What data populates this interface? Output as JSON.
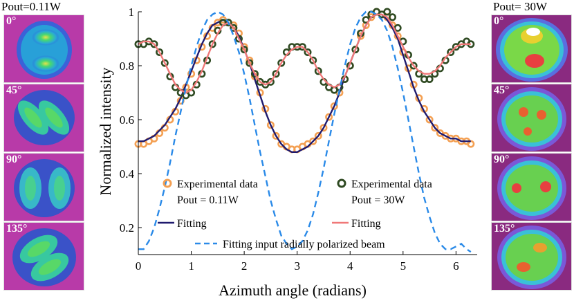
{
  "left_panel": {
    "header": "Pout=0.11W",
    "tiles": [
      {
        "angle": "0°",
        "pattern": "two-lobe-vertical"
      },
      {
        "angle": "45°",
        "pattern": "two-lobe-diagonal"
      },
      {
        "angle": "90°",
        "pattern": "two-lobe-horizontal"
      },
      {
        "angle": "135°",
        "pattern": "two-lobe-antidiagonal"
      }
    ]
  },
  "right_panel": {
    "header": "Pout= 30W",
    "tiles": [
      {
        "angle": "0°"
      },
      {
        "angle": "45°"
      },
      {
        "angle": "90°"
      },
      {
        "angle": "135°"
      }
    ]
  },
  "colors": {
    "exp_low": "#f4a053",
    "fit_low": "#1f1a6e",
    "exp_high": "#2f4a22",
    "fit_high": "#f07878",
    "fit_input": "#2a8ae8"
  },
  "chart_data": {
    "type": "line",
    "xlabel": "Azimuth angle (radians)",
    "ylabel": "Normalized intensity",
    "xlim": [
      0,
      6.4
    ],
    "ylim": [
      0.1,
      1.0
    ],
    "xticks": [
      0,
      1,
      2,
      3,
      4,
      5,
      6
    ],
    "yticks": [
      0.2,
      0.4,
      0.6,
      0.8,
      1
    ],
    "xtick_labels": [
      "0",
      "1",
      "2",
      "3",
      "4",
      "5",
      "6"
    ],
    "ytick_labels": [
      "0.2",
      "0.4",
      "0.6",
      "0.8",
      "1"
    ],
    "legend": [
      {
        "marker": "circle-open-orange",
        "text": [
          "Experimental data",
          "Pout = 0.11W"
        ]
      },
      {
        "marker": "line-navy",
        "text": [
          "Fitting"
        ]
      },
      {
        "marker": "circle-open-darkgreen",
        "text": [
          "Experimental data",
          "Pout = 30W"
        ]
      },
      {
        "marker": "line-salmon",
        "text": [
          "Fitting"
        ]
      },
      {
        "marker": "dashed-blue",
        "text": [
          "Fitting input radially polarized beam"
        ]
      }
    ],
    "series": [
      {
        "style": "scatter",
        "color": "#f4a053",
        "x": [
          0.0,
          0.1,
          0.2,
          0.3,
          0.4,
          0.5,
          0.6,
          0.7,
          0.8,
          0.9,
          1.0,
          1.1,
          1.2,
          1.3,
          1.4,
          1.5,
          1.6,
          1.7,
          1.8,
          1.9,
          2.0,
          2.1,
          2.2,
          2.3,
          2.4,
          2.5,
          2.6,
          2.7,
          2.8,
          2.9,
          3.0,
          3.1,
          3.2,
          3.3,
          3.4,
          3.5,
          3.6,
          3.7,
          3.8,
          3.9,
          4.0,
          4.1,
          4.2,
          4.3,
          4.4,
          4.5,
          4.6,
          4.7,
          4.8,
          4.9,
          5.0,
          5.1,
          5.2,
          5.3,
          5.4,
          5.5,
          5.6,
          5.7,
          5.8,
          5.9,
          6.0,
          6.1,
          6.2,
          6.28
        ],
        "y": [
          0.51,
          0.51,
          0.52,
          0.53,
          0.55,
          0.57,
          0.6,
          0.63,
          0.67,
          0.72,
          0.77,
          0.82,
          0.87,
          0.91,
          0.94,
          0.96,
          0.97,
          0.96,
          0.95,
          0.92,
          0.87,
          0.82,
          0.76,
          0.7,
          0.64,
          0.58,
          0.54,
          0.51,
          0.5,
          0.49,
          0.49,
          0.5,
          0.51,
          0.52,
          0.54,
          0.57,
          0.61,
          0.65,
          0.7,
          0.75,
          0.8,
          0.86,
          0.91,
          0.95,
          0.98,
          1.0,
          0.99,
          0.98,
          0.95,
          0.91,
          0.85,
          0.79,
          0.73,
          0.68,
          0.64,
          0.6,
          0.57,
          0.55,
          0.54,
          0.53,
          0.53,
          0.52,
          0.52,
          0.51
        ]
      },
      {
        "style": "line",
        "color": "#1f1a6e",
        "x": [
          0.0,
          0.1,
          0.2,
          0.3,
          0.4,
          0.5,
          0.6,
          0.7,
          0.8,
          0.9,
          1.0,
          1.1,
          1.2,
          1.3,
          1.4,
          1.5,
          1.6,
          1.7,
          1.8,
          1.9,
          2.0,
          2.1,
          2.2,
          2.3,
          2.4,
          2.5,
          2.6,
          2.7,
          2.8,
          2.9,
          3.0,
          3.1,
          3.2,
          3.3,
          3.4,
          3.5,
          3.6,
          3.7,
          3.8,
          3.9,
          4.0,
          4.1,
          4.2,
          4.3,
          4.4,
          4.5,
          4.6,
          4.7,
          4.8,
          4.9,
          5.0,
          5.1,
          5.2,
          5.3,
          5.4,
          5.5,
          5.6,
          5.7,
          5.8,
          5.9,
          6.0,
          6.1,
          6.2,
          6.28
        ],
        "y": [
          0.52,
          0.52,
          0.53,
          0.54,
          0.56,
          0.58,
          0.61,
          0.64,
          0.68,
          0.73,
          0.78,
          0.83,
          0.88,
          0.92,
          0.95,
          0.96,
          0.97,
          0.96,
          0.94,
          0.91,
          0.86,
          0.81,
          0.75,
          0.69,
          0.63,
          0.58,
          0.54,
          0.51,
          0.49,
          0.48,
          0.48,
          0.49,
          0.5,
          0.52,
          0.54,
          0.57,
          0.61,
          0.65,
          0.7,
          0.76,
          0.81,
          0.86,
          0.91,
          0.95,
          0.98,
          0.99,
          0.99,
          0.97,
          0.94,
          0.9,
          0.84,
          0.78,
          0.72,
          0.67,
          0.63,
          0.6,
          0.57,
          0.55,
          0.54,
          0.53,
          0.53,
          0.52,
          0.52,
          0.52
        ]
      },
      {
        "style": "scatter",
        "color": "#2f4a22",
        "x": [
          0.0,
          0.1,
          0.2,
          0.3,
          0.4,
          0.5,
          0.6,
          0.7,
          0.8,
          0.9,
          1.0,
          1.1,
          1.2,
          1.3,
          1.4,
          1.5,
          1.6,
          1.7,
          1.8,
          1.9,
          2.0,
          2.1,
          2.2,
          2.3,
          2.4,
          2.5,
          2.6,
          2.7,
          2.8,
          2.9,
          3.0,
          3.1,
          3.2,
          3.3,
          3.4,
          3.5,
          3.6,
          3.7,
          3.8,
          3.9,
          4.0,
          4.1,
          4.2,
          4.3,
          4.4,
          4.5,
          4.6,
          4.7,
          4.8,
          4.9,
          5.0,
          5.1,
          5.2,
          5.3,
          5.4,
          5.5,
          5.6,
          5.7,
          5.8,
          5.9,
          6.0,
          6.1,
          6.2,
          6.28
        ],
        "y": [
          0.88,
          0.88,
          0.89,
          0.88,
          0.85,
          0.81,
          0.76,
          0.72,
          0.7,
          0.69,
          0.7,
          0.73,
          0.77,
          0.82,
          0.88,
          0.93,
          0.96,
          0.96,
          0.94,
          0.9,
          0.86,
          0.81,
          0.77,
          0.74,
          0.73,
          0.74,
          0.77,
          0.81,
          0.85,
          0.87,
          0.87,
          0.87,
          0.85,
          0.82,
          0.78,
          0.74,
          0.72,
          0.71,
          0.72,
          0.75,
          0.8,
          0.86,
          0.92,
          0.97,
          0.99,
          1.0,
          0.99,
          1.0,
          0.98,
          0.94,
          0.89,
          0.84,
          0.8,
          0.77,
          0.75,
          0.75,
          0.77,
          0.79,
          0.82,
          0.85,
          0.87,
          0.88,
          0.89,
          0.88
        ]
      },
      {
        "style": "line",
        "color": "#f07878",
        "x": [
          0.0,
          0.1,
          0.2,
          0.3,
          0.4,
          0.5,
          0.6,
          0.7,
          0.8,
          0.9,
          1.0,
          1.1,
          1.2,
          1.3,
          1.4,
          1.5,
          1.6,
          1.7,
          1.8,
          1.9,
          2.0,
          2.1,
          2.2,
          2.3,
          2.4,
          2.5,
          2.6,
          2.7,
          2.8,
          2.9,
          3.0,
          3.1,
          3.2,
          3.3,
          3.4,
          3.5,
          3.6,
          3.7,
          3.8,
          3.9,
          4.0,
          4.1,
          4.2,
          4.3,
          4.4,
          4.5,
          4.6,
          4.7,
          4.8,
          4.9,
          5.0,
          5.1,
          5.2,
          5.3,
          5.4,
          5.5,
          5.6,
          5.7,
          5.8,
          5.9,
          6.0,
          6.1,
          6.2,
          6.28
        ],
        "y": [
          0.88,
          0.89,
          0.89,
          0.88,
          0.85,
          0.81,
          0.77,
          0.73,
          0.71,
          0.7,
          0.71,
          0.74,
          0.78,
          0.83,
          0.88,
          0.92,
          0.95,
          0.96,
          0.94,
          0.9,
          0.86,
          0.81,
          0.77,
          0.74,
          0.73,
          0.74,
          0.77,
          0.81,
          0.84,
          0.86,
          0.87,
          0.87,
          0.85,
          0.82,
          0.78,
          0.75,
          0.73,
          0.72,
          0.73,
          0.76,
          0.81,
          0.86,
          0.91,
          0.95,
          0.98,
          0.99,
          0.99,
          0.98,
          0.95,
          0.91,
          0.87,
          0.83,
          0.8,
          0.78,
          0.77,
          0.77,
          0.78,
          0.8,
          0.83,
          0.85,
          0.87,
          0.88,
          0.88,
          0.88
        ]
      },
      {
        "style": "dashed",
        "color": "#2a8ae8",
        "x": [
          0.0,
          0.1,
          0.2,
          0.3,
          0.4,
          0.5,
          0.6,
          0.7,
          0.8,
          0.9,
          1.0,
          1.1,
          1.2,
          1.3,
          1.4,
          1.5,
          1.6,
          1.7,
          1.8,
          1.9,
          2.0,
          2.1,
          2.2,
          2.3,
          2.4,
          2.5,
          2.6,
          2.7,
          2.8,
          2.9,
          3.0,
          3.1,
          3.2,
          3.3,
          3.4,
          3.5,
          3.6,
          3.7,
          3.8,
          3.9,
          4.0,
          4.1,
          4.2,
          4.3,
          4.4,
          4.5,
          4.6,
          4.7,
          4.8,
          4.9,
          5.0,
          5.1,
          5.2,
          5.3,
          5.4,
          5.5,
          5.6,
          5.7,
          5.8,
          5.9,
          6.0,
          6.1,
          6.2,
          6.28
        ],
        "y": [
          0.12,
          0.12,
          0.15,
          0.2,
          0.27,
          0.35,
          0.44,
          0.54,
          0.63,
          0.72,
          0.8,
          0.87,
          0.93,
          0.97,
          0.99,
          1.0,
          0.99,
          0.96,
          0.91,
          0.85,
          0.77,
          0.68,
          0.58,
          0.48,
          0.39,
          0.3,
          0.23,
          0.17,
          0.14,
          0.12,
          0.13,
          0.15,
          0.19,
          0.25,
          0.33,
          0.42,
          0.52,
          0.62,
          0.71,
          0.8,
          0.88,
          0.94,
          0.98,
          1.0,
          1.0,
          0.99,
          0.97,
          0.93,
          0.87,
          0.79,
          0.7,
          0.6,
          0.5,
          0.4,
          0.31,
          0.24,
          0.18,
          0.14,
          0.12,
          0.12,
          0.13,
          0.14,
          0.12,
          0.11
        ]
      }
    ]
  }
}
